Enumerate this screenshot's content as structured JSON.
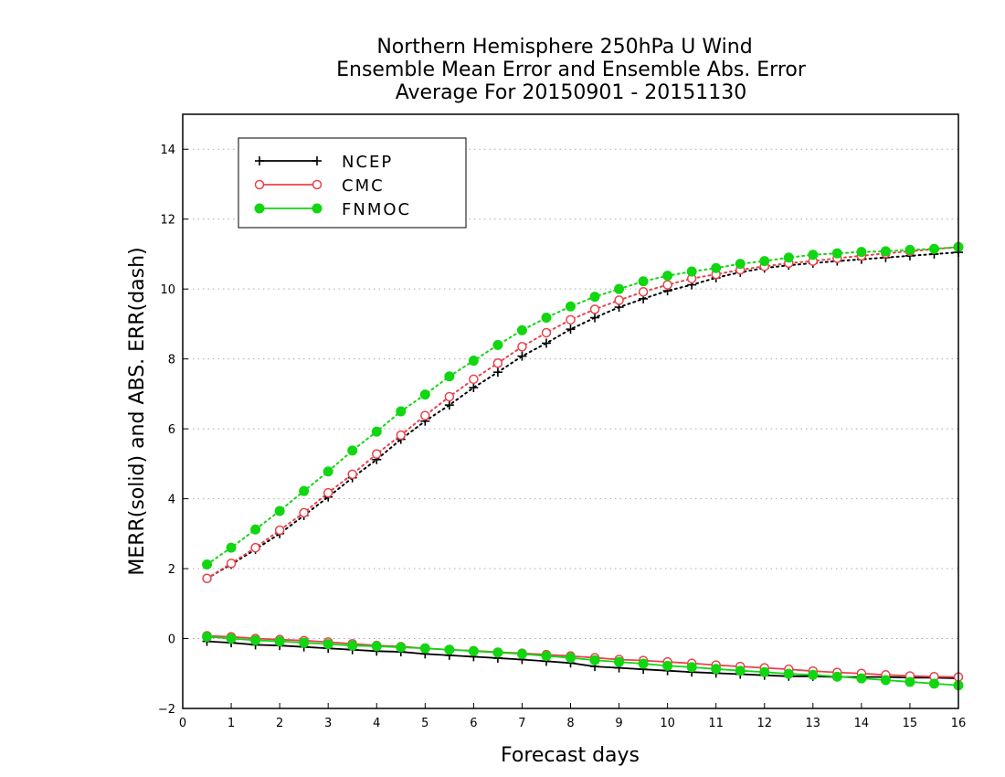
{
  "chart_data": {
    "type": "line",
    "title": [
      "Northern Hemisphere 250hPa U Wind",
      "Ensemble Mean Error and Ensemble Abs. Error",
      "Average For 20150901 - 20151130"
    ],
    "xlabel": "Forecast days",
    "ylabel": "MERR(solid) and ABS. ERR(dash)",
    "xlim": [
      0,
      16
    ],
    "ylim": [
      -2,
      15
    ],
    "xticks": [
      0,
      1,
      2,
      3,
      4,
      5,
      6,
      7,
      8,
      9,
      10,
      11,
      12,
      13,
      14,
      15,
      16
    ],
    "yticks": [
      -2,
      0,
      2,
      4,
      6,
      8,
      10,
      12,
      14
    ],
    "grid": "horizontal dotted",
    "legend_position": "top-left",
    "x": [
      0.5,
      1,
      1.5,
      2,
      2.5,
      3,
      3.5,
      4,
      4.5,
      5,
      5.5,
      6,
      6.5,
      7,
      7.5,
      8,
      8.5,
      9,
      9.5,
      10,
      10.5,
      11,
      11.5,
      12,
      12.5,
      13,
      13.5,
      14,
      14.5,
      15,
      15.5,
      16
    ],
    "series": [
      {
        "name": "NCEP",
        "color": "#000000",
        "marker": "plus",
        "mean_error": [
          -0.08,
          -0.12,
          -0.18,
          -0.2,
          -0.24,
          -0.28,
          -0.32,
          -0.36,
          -0.38,
          -0.44,
          -0.48,
          -0.52,
          -0.56,
          -0.6,
          -0.65,
          -0.7,
          -0.8,
          -0.84,
          -0.88,
          -0.92,
          -0.96,
          -0.99,
          -1.02,
          -1.05,
          -1.08,
          -1.08,
          -1.1,
          -1.1,
          -1.1,
          -1.12,
          -1.12,
          -1.14
        ],
        "abs_error": [
          1.72,
          2.12,
          2.55,
          3.0,
          3.52,
          4.05,
          4.6,
          5.12,
          5.7,
          6.22,
          6.68,
          7.18,
          7.62,
          8.08,
          8.45,
          8.85,
          9.18,
          9.48,
          9.72,
          9.95,
          10.12,
          10.32,
          10.48,
          10.6,
          10.68,
          10.74,
          10.8,
          10.85,
          10.9,
          10.95,
          11.0,
          11.05
        ]
      },
      {
        "name": "CMC",
        "color": "#e8424a",
        "marker": "open-circle",
        "mean_error": [
          0.08,
          0.05,
          0.0,
          -0.03,
          -0.06,
          -0.1,
          -0.15,
          -0.2,
          -0.23,
          -0.28,
          -0.32,
          -0.35,
          -0.39,
          -0.42,
          -0.46,
          -0.5,
          -0.55,
          -0.6,
          -0.63,
          -0.67,
          -0.71,
          -0.76,
          -0.8,
          -0.84,
          -0.88,
          -0.93,
          -0.97,
          -1.0,
          -1.04,
          -1.07,
          -1.09,
          -1.1
        ],
        "abs_error": [
          1.72,
          2.15,
          2.6,
          3.1,
          3.6,
          4.17,
          4.7,
          5.28,
          5.82,
          6.38,
          6.92,
          7.42,
          7.88,
          8.35,
          8.75,
          9.12,
          9.42,
          9.68,
          9.92,
          10.12,
          10.3,
          10.42,
          10.55,
          10.65,
          10.74,
          10.8,
          10.88,
          10.95,
          11.02,
          11.08,
          11.14,
          11.2
        ]
      },
      {
        "name": "FNMOC",
        "color": "#11d611",
        "marker": "filled-circle",
        "mean_error": [
          0.05,
          0.0,
          -0.05,
          -0.08,
          -0.12,
          -0.16,
          -0.2,
          -0.22,
          -0.25,
          -0.28,
          -0.32,
          -0.36,
          -0.4,
          -0.44,
          -0.5,
          -0.55,
          -0.62,
          -0.67,
          -0.72,
          -0.78,
          -0.82,
          -0.87,
          -0.92,
          -0.96,
          -1.01,
          -1.04,
          -1.09,
          -1.14,
          -1.19,
          -1.24,
          -1.29,
          -1.34
        ],
        "abs_error": [
          2.12,
          2.6,
          3.12,
          3.65,
          4.22,
          4.78,
          5.38,
          5.92,
          6.5,
          6.98,
          7.5,
          7.95,
          8.4,
          8.82,
          9.18,
          9.5,
          9.78,
          10.0,
          10.22,
          10.38,
          10.5,
          10.6,
          10.72,
          10.8,
          10.9,
          10.98,
          11.02,
          11.06,
          11.08,
          11.12,
          11.15,
          11.2
        ]
      }
    ]
  }
}
